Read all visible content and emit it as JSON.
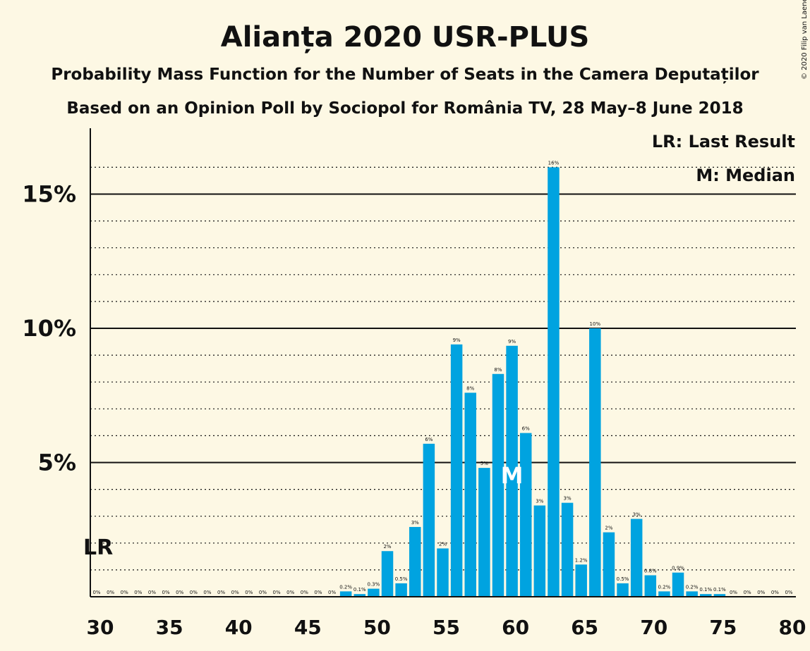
{
  "header": {
    "title": "Alianța 2020 USR-PLUS",
    "subtitle1": "Probability Mass Function for the Number of Seats in the Camera Deputaților",
    "subtitle2": "Based on an Opinion Poll by Sociopol for România TV, 28 May–8 June 2018",
    "copyright": "© 2020 Filip van Laenen"
  },
  "legend": {
    "lr": "LR: Last Result",
    "median": "M: Median"
  },
  "markers": {
    "last_result_label": "LR",
    "last_result_seats": 30,
    "median_label": "M",
    "median_seats": 60
  },
  "colors": {
    "bar": "#00a3e0",
    "background": "#fdf8e4",
    "text": "#111111"
  },
  "chart_data": {
    "type": "bar",
    "title": "Alianța 2020 USR-PLUS",
    "xlabel": "",
    "ylabel": "",
    "xlim": [
      30,
      80
    ],
    "ylim": [
      0,
      17
    ],
    "x_ticks": [
      30,
      35,
      40,
      45,
      50,
      55,
      60,
      65,
      70,
      75,
      80
    ],
    "x_tick_labels": [
      "30",
      "35",
      "40",
      "45",
      "50",
      "55",
      "60",
      "65",
      "70",
      "75",
      "80"
    ],
    "y_ticks": [
      5,
      10,
      15
    ],
    "y_tick_labels": [
      "5%",
      "10%",
      "15%"
    ],
    "grid": "dotted every 1%, solid every 5%",
    "legend_position": "top-right",
    "seats": [
      30,
      31,
      32,
      33,
      34,
      35,
      36,
      37,
      38,
      39,
      40,
      41,
      42,
      43,
      44,
      45,
      46,
      47,
      48,
      49,
      50,
      51,
      52,
      53,
      54,
      55,
      56,
      57,
      58,
      59,
      60,
      61,
      62,
      63,
      64,
      65,
      66,
      67,
      68,
      69,
      70,
      71,
      72,
      73,
      74,
      75,
      76,
      77,
      78,
      79,
      80
    ],
    "values": [
      0,
      0,
      0,
      0,
      0,
      0,
      0,
      0,
      0,
      0,
      0,
      0,
      0,
      0,
      0,
      0,
      0,
      0,
      0.2,
      0.1,
      0.3,
      1.7,
      0.5,
      2.6,
      5.7,
      1.8,
      9.4,
      7.6,
      4.8,
      8.3,
      9.35,
      6.1,
      3.4,
      16,
      3.5,
      1.2,
      10,
      2.4,
      0.5,
      2.9,
      0.8,
      0.2,
      0.9,
      0.2,
      0.1,
      0.1,
      0,
      0,
      0,
      0,
      0
    ],
    "labels": [
      "0%",
      "0%",
      "0%",
      "0%",
      "0%",
      "0%",
      "0%",
      "0%",
      "0%",
      "0%",
      "0%",
      "0%",
      "0%",
      "0%",
      "0%",
      "0%",
      "0%",
      "0%",
      "0.2%",
      "0.1%",
      "0.3%",
      "2%",
      "0.5%",
      "3%",
      "6%",
      "2%",
      "9%",
      "8%",
      "5%",
      "8%",
      "9%",
      "6%",
      "3%",
      "16%",
      "3%",
      "1.2%",
      "10%",
      "2%",
      "0.5%",
      "3%",
      "0.8%",
      "0.2%",
      "0.9%",
      "0.2%",
      "0.1%",
      "0.1%",
      "0%",
      "0%",
      "0%",
      "0%",
      "0%"
    ]
  }
}
